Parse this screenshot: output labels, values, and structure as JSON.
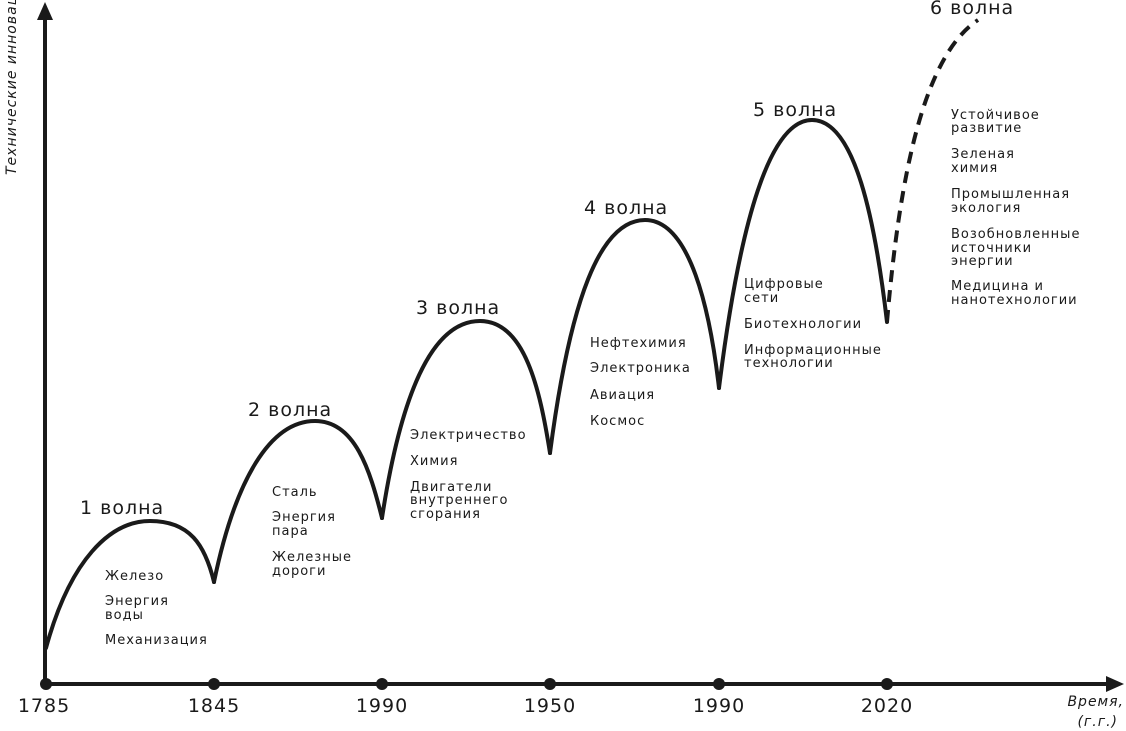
{
  "axes": {
    "y_label": "Технические инновации",
    "x_label_line1": "Время,",
    "x_label_line2": "(г.г.)"
  },
  "years": [
    "1785",
    "1845",
    "1990",
    "1950",
    "1990",
    "2020"
  ],
  "waves": [
    {
      "title": "1 волна",
      "items": [
        [
          "Железо"
        ],
        [
          "Энергия",
          "воды"
        ],
        [
          "Механизация"
        ]
      ]
    },
    {
      "title": "2 волна",
      "items": [
        [
          "Сталь"
        ],
        [
          "Энергия",
          "пара"
        ],
        [
          "Железные",
          "дороги"
        ]
      ]
    },
    {
      "title": "3 волна",
      "items": [
        [
          "Электричество"
        ],
        [
          "Химия"
        ],
        [
          "Двигатели",
          "внутреннего",
          "сгорания"
        ]
      ]
    },
    {
      "title": "4 волна",
      "items": [
        [
          "Нефтехимия"
        ],
        [
          "Электроника"
        ],
        [
          "Авиация"
        ],
        [
          "Космос"
        ]
      ]
    },
    {
      "title": "5 волна",
      "items": [
        [
          "Цифровые",
          "сети"
        ],
        [
          "Биотехнологии"
        ],
        [
          "Информационные",
          "технологии"
        ]
      ]
    },
    {
      "title": "6 волна",
      "items": [
        [
          "Устойчивое",
          "развитие"
        ],
        [
          "Зеленая",
          "химия"
        ],
        [
          "Промышленная",
          "экология"
        ],
        [
          "Возобновленные",
          "источники",
          "энергии"
        ],
        [
          "Медицина и",
          "нанотехнологии"
        ]
      ]
    }
  ],
  "colors": {
    "ink": "#1a1a1a",
    "background": "#ffffff"
  }
}
